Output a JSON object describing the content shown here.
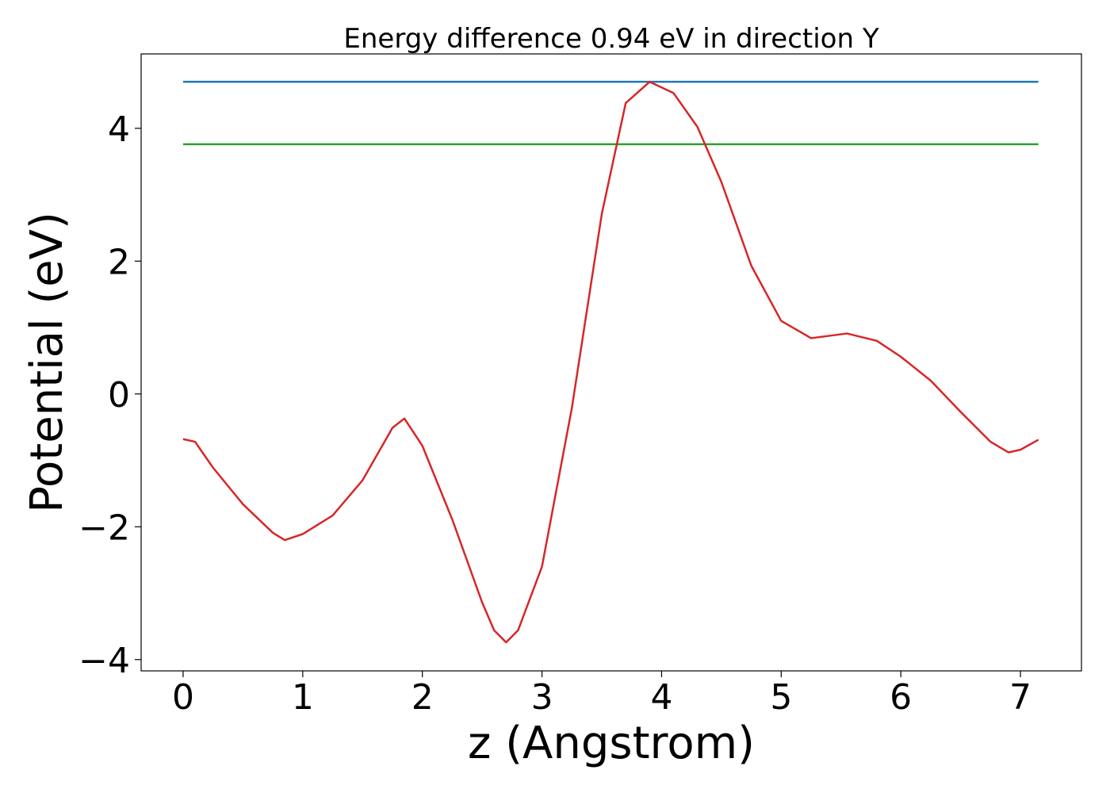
{
  "chart_data": {
    "type": "line",
    "title": "Energy difference 0.94 eV in direction Y",
    "xlabel": "z (Angstrom)",
    "ylabel": "Potential (eV)",
    "xlim": [
      -0.351,
      7.51
    ],
    "ylim": [
      -4.17,
      5.12
    ],
    "xticks": [
      0,
      1,
      2,
      3,
      4,
      5,
      6,
      7
    ],
    "yticks": [
      {
        "value": -4,
        "label": "−4"
      },
      {
        "value": -2,
        "label": "−2"
      },
      0,
      2,
      4
    ],
    "series": [
      {
        "color": "#d62728",
        "x": [
          0,
          0.1,
          0.25,
          0.5,
          0.75,
          0.85,
          1.0,
          1.25,
          1.5,
          1.75,
          1.85,
          2.0,
          2.25,
          2.5,
          2.6,
          2.7,
          2.8,
          3.0,
          3.25,
          3.5,
          3.7,
          3.9,
          4.1,
          4.3,
          4.5,
          4.75,
          5.0,
          5.25,
          5.55,
          5.8,
          6.0,
          6.25,
          6.5,
          6.75,
          6.9,
          7.0,
          7.15
        ],
        "values": [
          -0.68,
          -0.72,
          -1.11,
          -1.66,
          -2.09,
          -2.2,
          -2.11,
          -1.83,
          -1.3,
          -0.51,
          -0.37,
          -0.78,
          -1.89,
          -3.14,
          -3.56,
          -3.74,
          -3.56,
          -2.6,
          -0.21,
          2.71,
          4.38,
          4.7,
          4.53,
          4.02,
          3.19,
          1.93,
          1.1,
          0.84,
          0.91,
          0.8,
          0.56,
          0.2,
          -0.27,
          -0.72,
          -0.88,
          -0.84,
          -0.69
        ]
      },
      {
        "color": "#1f77b4",
        "x": [
          0,
          7.15
        ],
        "values": [
          4.7,
          4.7
        ]
      },
      {
        "color": "#2ca02c",
        "x": [
          0,
          7.15
        ],
        "values": [
          3.76,
          3.76
        ]
      }
    ]
  }
}
